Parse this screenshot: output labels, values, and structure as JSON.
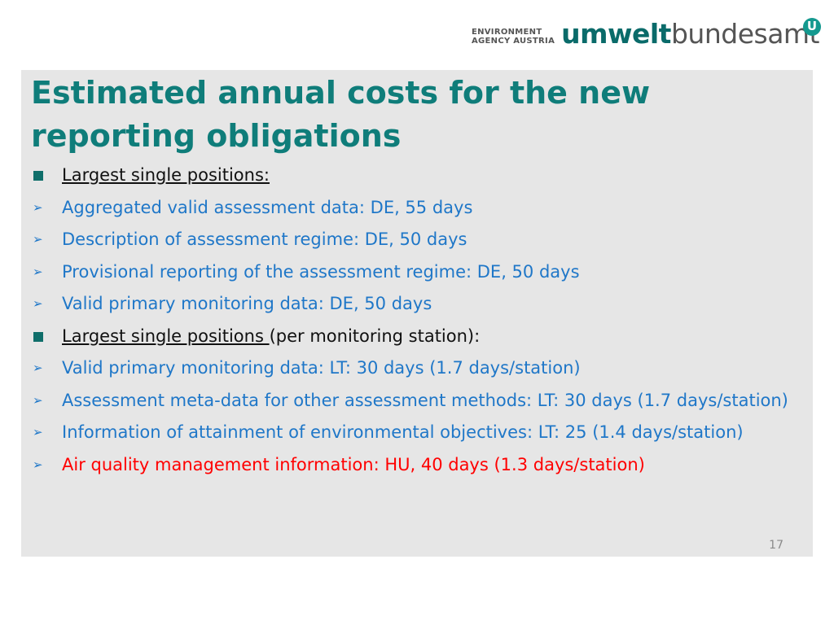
{
  "header": {
    "logo_small_line1": "ENVIRONMENT",
    "logo_small_line2": "AGENCY AUSTRIA",
    "logo_umwelt": "umwelt",
    "logo_bundesamt": "bundesamt",
    "logo_mark": "U"
  },
  "slide": {
    "title": "Estimated annual costs for the new reporting obligations",
    "section1_heading": "Largest single positions:",
    "items1": [
      "Aggregated valid assessment data: DE, 55 days",
      "Description of assessment regime: DE, 50 days",
      "Provisional reporting of the assessment regime: DE, 50 days",
      "Valid primary monitoring data: DE, 50 days"
    ],
    "section2_heading_underlined": "Largest single positions ",
    "section2_heading_rest": "(per monitoring station):",
    "items2": [
      "Valid primary monitoring data: LT: 30 days (1.7 days/station)",
      "Assessment meta-data for other assessment methods: LT: 30 days (1.7 days/station)",
      "Information of attainment of environmental objectives: LT: 25 (1.4 days/station)"
    ],
    "highlight_item": "Air quality management information: HU, 40 days (1.3 days/station)",
    "page_number": "17"
  },
  "colors": {
    "title": "#0f7d7a",
    "bullet_text": "#1f77c8",
    "highlight": "#ff0000",
    "panel_bg": "#e6e6e6"
  }
}
